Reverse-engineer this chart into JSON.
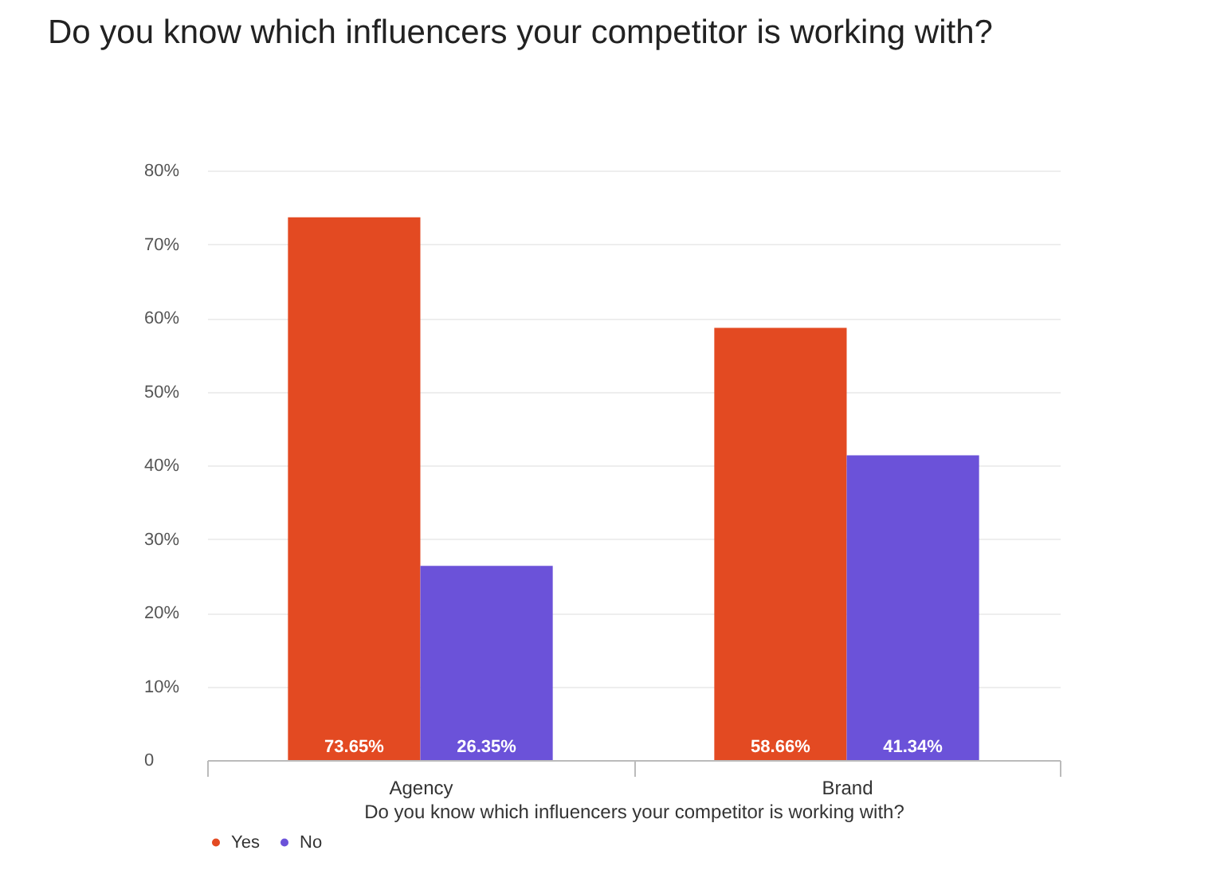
{
  "chart_data": {
    "type": "bar",
    "title": "Do you know which influencers your competitor is working with?",
    "xlabel": "Do you know which influencers your competitor is working with?",
    "categories": [
      "Agency",
      "Brand"
    ],
    "series": [
      {
        "name": "Yes",
        "color": "#e34a22",
        "values": [
          73.65,
          58.66
        ],
        "value_labels": [
          "73.65%",
          "58.66%"
        ]
      },
      {
        "name": "No",
        "color": "#6b52d9",
        "values": [
          26.35,
          41.34
        ],
        "value_labels": [
          "26.35%",
          "41.34%"
        ]
      }
    ],
    "ylim": [
      0,
      80
    ],
    "yticks": [
      0,
      {
        "value": 10,
        "label": "10%"
      },
      {
        "value": 20,
        "label": "20%"
      },
      {
        "value": 30,
        "label": "30%"
      },
      {
        "value": 40,
        "label": "40%"
      },
      {
        "value": 50,
        "label": "50%"
      },
      {
        "value": 60,
        "label": "60%"
      },
      {
        "value": 70,
        "label": "70%"
      },
      {
        "value": 80,
        "label": "80%"
      }
    ],
    "grid": "y",
    "legend": "bottom"
  }
}
